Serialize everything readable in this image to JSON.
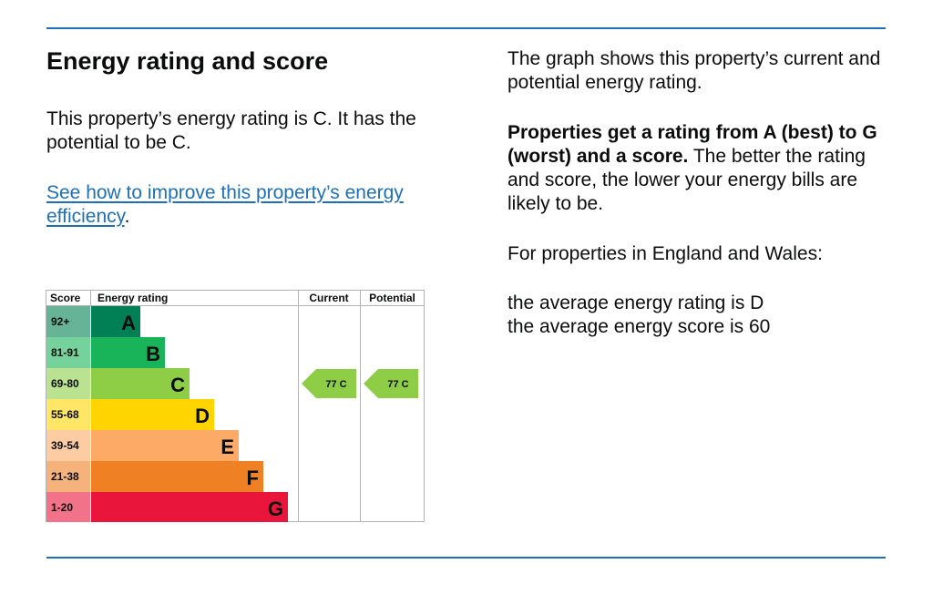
{
  "heading": "Energy rating and score",
  "intro": "This property’s energy rating is C. It has the potential to be C.",
  "link_text": "See how to improve this property’s energy efficiency",
  "link_suffix": ".",
  "right": {
    "graph_text": "The graph shows this property’s current and potential energy rating.",
    "bold_text": "Properties get a rating from A (best) to G (worst) and a score.",
    "rest_text": " The better the rating and score, the lower your energy bills are likely to be.",
    "region_text": "For properties in England and Wales:",
    "avg_rating": "the average energy rating is D",
    "avg_score": "the average energy score is 60"
  },
  "chart_data": {
    "type": "bar",
    "headers": [
      "Score",
      "Energy rating",
      "Current",
      "Potential"
    ],
    "bands": [
      {
        "range": "92+",
        "letter": "A",
        "color": "#008054",
        "range_color": "#66b398"
      },
      {
        "range": "81-91",
        "letter": "B",
        "color": "#19b459",
        "range_color": "#75d29b"
      },
      {
        "range": "69-80",
        "letter": "C",
        "color": "#8dce46",
        "range_color": "#bbe290"
      },
      {
        "range": "55-68",
        "letter": "D",
        "color": "#ffd500",
        "range_color": "#ffe666"
      },
      {
        "range": "39-54",
        "letter": "E",
        "color": "#fcaa65",
        "range_color": "#fdcca3"
      },
      {
        "range": "21-38",
        "letter": "F",
        "color": "#ef8023",
        "range_color": "#f5b37b"
      },
      {
        "range": "1-20",
        "letter": "G",
        "color": "#e9153b",
        "range_color": "#f27389"
      }
    ],
    "current": {
      "score": 77,
      "band": "C",
      "label": "77 C"
    },
    "potential": {
      "score": 77,
      "band": "C",
      "label": "77 C"
    }
  }
}
